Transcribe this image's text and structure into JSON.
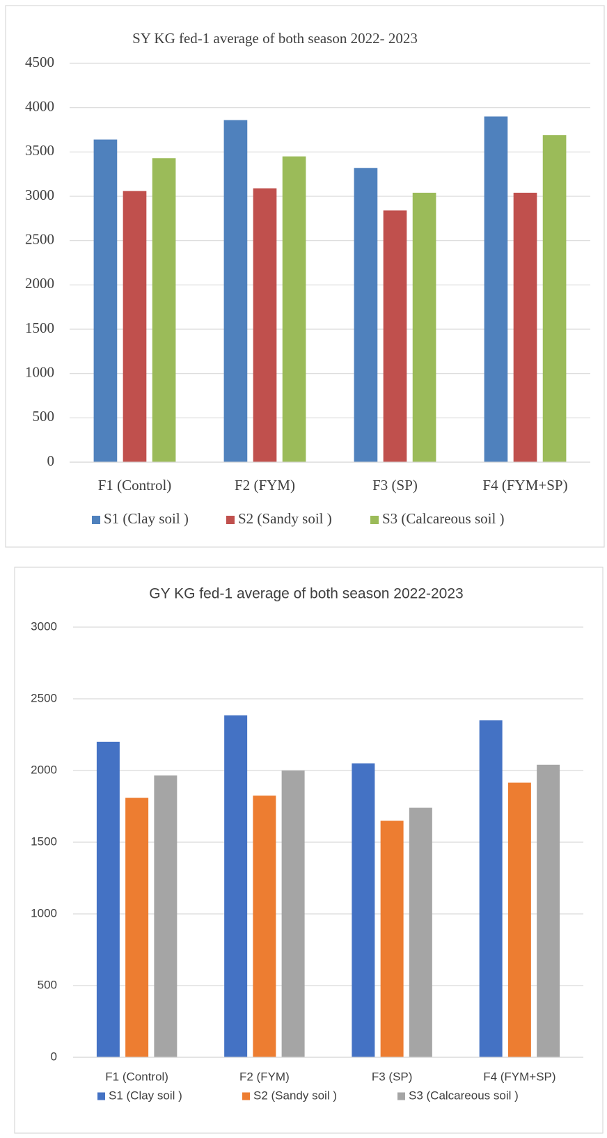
{
  "chart_data": [
    {
      "type": "bar",
      "title": "SY KG fed-1  average of both season 2022- 2023",
      "categories": [
        "F1 (Control)",
        "F2 (FYM)",
        "F3 (SP)",
        "F4 (FYM+SP)"
      ],
      "series": [
        {
          "name": "S1 (Clay soil )",
          "color": "#4f81bd",
          "values": [
            3640,
            3860,
            3320,
            3900
          ]
        },
        {
          "name": "S2 (Sandy soil )",
          "color": "#c0504d",
          "values": [
            3060,
            3090,
            2840,
            3040
          ]
        },
        {
          "name": "S3 (Calcareous soil )",
          "color": "#9bbb59",
          "values": [
            3430,
            3450,
            3040,
            3690
          ]
        }
      ],
      "ylim": [
        0,
        4500
      ],
      "yticks": [
        0,
        500,
        1000,
        1500,
        2000,
        2500,
        3000,
        3500,
        4000,
        4500
      ],
      "grid": true,
      "legend": "bottom"
    },
    {
      "type": "bar",
      "title": "GY KG fed-1  average of both season 2022-2023",
      "categories": [
        "F1 (Control)",
        "F2 (FYM)",
        "F3 (SP)",
        "F4 (FYM+SP)"
      ],
      "series": [
        {
          "name": "S1 (Clay soil )",
          "color": "#4472c4",
          "values": [
            2200,
            2385,
            2050,
            2350
          ]
        },
        {
          "name": "S2 (Sandy soil )",
          "color": "#ed7d31",
          "values": [
            1810,
            1825,
            1650,
            1915
          ]
        },
        {
          "name": "S3 (Calcareous soil )",
          "color": "#a5a5a5",
          "values": [
            1965,
            2000,
            1740,
            2040
          ]
        }
      ],
      "ylim": [
        0,
        3000
      ],
      "yticks": [
        0,
        500,
        1000,
        1500,
        2000,
        2500,
        3000
      ],
      "grid": true,
      "legend": "bottom"
    }
  ]
}
